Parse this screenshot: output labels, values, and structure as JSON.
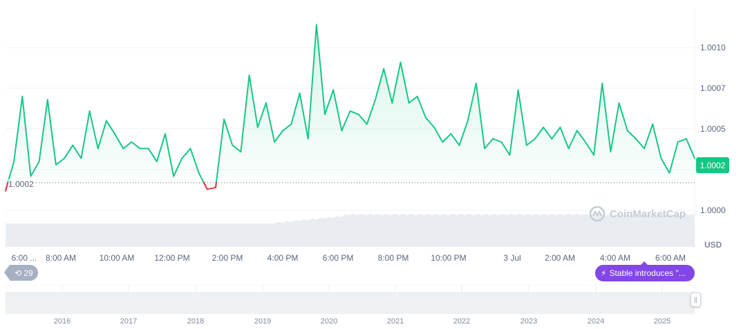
{
  "chart_data": {
    "type": "line",
    "ylabel": "USD",
    "ylim": [
      0.99995,
      1.00118
    ],
    "y_ticks": [
      "1.0000",
      "1.0005",
      "1.0007",
      "1.0010"
    ],
    "x_tick_labels": [
      "6:00 ...",
      "8:00 AM",
      "10:00 AM",
      "12:00 PM",
      "2:00 PM",
      "4:00 PM",
      "6:00 PM",
      "8:00 PM",
      "10:00 PM",
      "3 Jul",
      "2:00 AM",
      "4:00 AM",
      "6:00 AM"
    ],
    "baseline_value": 1.00017,
    "baseline_label": "1.0002",
    "current_price": "1.0002",
    "grid": "horizontal",
    "colors": {
      "up": "#16c784",
      "down": "#ea3943",
      "news": "#8247e5",
      "tag": "#16c784"
    },
    "x": [
      "06:00",
      "06:18",
      "06:36",
      "06:54",
      "07:12",
      "07:30",
      "07:48",
      "08:06",
      "08:24",
      "08:42",
      "09:00",
      "09:18",
      "09:36",
      "09:54",
      "10:12",
      "10:30",
      "10:48",
      "11:06",
      "11:24",
      "11:42",
      "12:00",
      "12:18",
      "12:36",
      "12:54",
      "13:12",
      "13:30",
      "13:48",
      "14:06",
      "14:24",
      "14:42",
      "15:00",
      "15:18",
      "15:36",
      "15:54",
      "16:12",
      "16:30",
      "16:48",
      "17:06",
      "17:24",
      "17:42",
      "18:00",
      "18:18",
      "18:36",
      "18:54",
      "19:12",
      "19:30",
      "19:48",
      "20:06",
      "20:24",
      "20:42",
      "21:00",
      "21:18",
      "21:36",
      "21:54",
      "22:12",
      "22:30",
      "22:48",
      "23:06",
      "23:24",
      "23:42",
      "00:00",
      "00:18",
      "00:36",
      "00:54",
      "01:12",
      "01:30",
      "01:48",
      "02:06",
      "02:24",
      "02:42",
      "03:00",
      "03:18",
      "03:36",
      "03:54",
      "04:12",
      "04:30",
      "04:48",
      "05:06",
      "05:24",
      "05:42",
      "06:00",
      "06:18",
      "06:36"
    ],
    "values": [
      1.00012,
      1.0003,
      1.0007,
      1.00021,
      1.0003,
      1.00068,
      1.00028,
      1.00032,
      1.0004,
      1.00032,
      1.00061,
      1.00038,
      1.00055,
      1.00047,
      1.00038,
      1.00042,
      1.00038,
      1.00038,
      1.0003,
      1.00047,
      1.00021,
      1.00032,
      1.00038,
      1.00023,
      1.00013,
      1.00014,
      1.00056,
      1.0004,
      1.00036,
      1.00083,
      1.00051,
      1.00066,
      1.00042,
      1.00049,
      1.00053,
      1.00072,
      1.00044,
      1.00114,
      1.00059,
      1.00074,
      1.00049,
      1.00061,
      1.00059,
      1.00053,
      1.00068,
      1.00087,
      1.00066,
      1.00091,
      1.00066,
      1.0007,
      1.00057,
      1.00051,
      1.00042,
      1.00047,
      1.0004,
      1.00055,
      1.00078,
      1.00038,
      1.00044,
      1.00042,
      1.00034,
      1.00074,
      1.0004,
      1.00044,
      1.00051,
      1.00044,
      1.00051,
      1.00038,
      1.00049,
      1.00042,
      1.00034,
      1.00078,
      1.00036,
      1.00066,
      1.00049,
      1.00044,
      1.00038,
      1.00053,
      1.00032,
      1.00023,
      1.00042,
      1.00044,
      1.00032
    ],
    "navigator_years": [
      "2016",
      "2017",
      "2018",
      "2019",
      "2020",
      "2021",
      "2022",
      "2023",
      "2024",
      "2025"
    ]
  },
  "ui": {
    "watermark": "CoinMarketCap",
    "event_count": "29",
    "news_label": "Stable introduces \"...",
    "history-icon": "clock-rewind-icon",
    "news-icon": "lightning-icon"
  }
}
